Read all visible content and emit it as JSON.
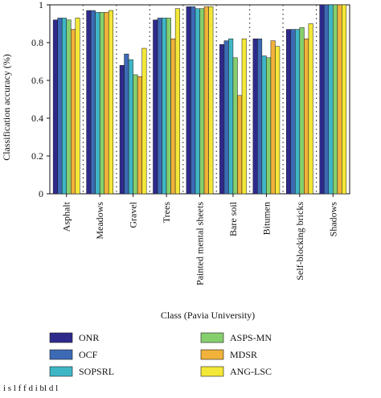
{
  "chart_data": {
    "type": "bar",
    "title": "",
    "xlabel": "Class (Pavia University)",
    "ylabel": "Classification accuracy (%)",
    "ylim": [
      0,
      1
    ],
    "yticks": [
      "0",
      "0.2",
      "0.4",
      "0.6",
      "0.8",
      "1"
    ],
    "grid": "dotted vertical lines between categories",
    "legend_position": "bottom",
    "categories": [
      "Asphalt",
      "Meadows",
      "Gravel",
      "Trees",
      "Painted mental sheets",
      "Bare soil",
      "Bitumen",
      "Self-blocking bricks",
      "Shadows"
    ],
    "series": [
      {
        "name": "ONR",
        "color": "#2e2a8c",
        "values": [
          0.92,
          0.97,
          0.68,
          0.92,
          0.99,
          0.79,
          0.82,
          0.87,
          1.0
        ]
      },
      {
        "name": "OCF",
        "color": "#3d6ab5",
        "values": [
          0.93,
          0.97,
          0.74,
          0.93,
          0.99,
          0.81,
          0.82,
          0.87,
          1.0
        ]
      },
      {
        "name": "SOPSRL",
        "color": "#3fb6c6",
        "values": [
          0.93,
          0.96,
          0.71,
          0.93,
          0.98,
          0.82,
          0.73,
          0.87,
          1.0
        ]
      },
      {
        "name": "ASPS-MN",
        "color": "#86cf6d",
        "values": [
          0.92,
          0.96,
          0.63,
          0.93,
          0.98,
          0.72,
          0.72,
          0.88,
          1.0
        ]
      },
      {
        "name": "MDSR",
        "color": "#f1b13a",
        "values": [
          0.87,
          0.96,
          0.62,
          0.82,
          0.99,
          0.52,
          0.81,
          0.82,
          1.0
        ]
      },
      {
        "name": "ANG-LSC",
        "color": "#f3e837",
        "values": [
          0.93,
          0.97,
          0.77,
          0.98,
          0.99,
          0.82,
          0.78,
          0.9,
          1.0
        ]
      }
    ]
  },
  "caption": "i    s    l                 f                 f     d  i  bl          d              l"
}
